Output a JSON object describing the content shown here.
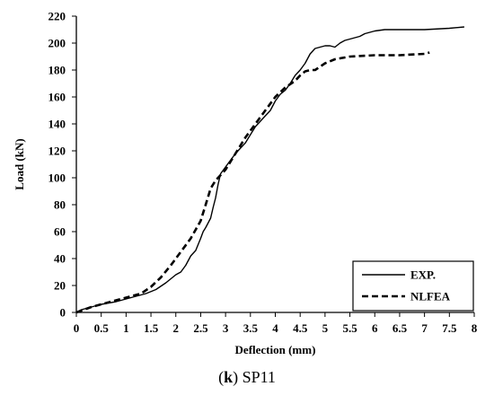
{
  "caption": {
    "prefix": "(",
    "letter": "k",
    "suffix": ") SP11"
  },
  "chart_data": {
    "type": "line",
    "title": "",
    "xlabel": "Deflection (mm)",
    "ylabel": "Load (kN)",
    "xlim": [
      0,
      8
    ],
    "ylim": [
      0,
      220
    ],
    "x_ticks": [
      "0",
      "0.5",
      "1",
      "1.5",
      "2",
      "2.5",
      "3",
      "3.5",
      "4",
      "4.5",
      "5",
      "5.5",
      "6",
      "6.5",
      "7",
      "7.5",
      "8"
    ],
    "x_tick_values": [
      0,
      0.5,
      1,
      1.5,
      2,
      2.5,
      3,
      3.5,
      4,
      4.5,
      5,
      5.5,
      6,
      6.5,
      7,
      7.5,
      8
    ],
    "y_ticks": [
      "0",
      "20",
      "40",
      "60",
      "80",
      "100",
      "120",
      "140",
      "160",
      "180",
      "200",
      "220"
    ],
    "y_tick_values": [
      0,
      20,
      40,
      60,
      80,
      100,
      120,
      140,
      160,
      180,
      200,
      220
    ],
    "grid": false,
    "legend_position": "bottom-right",
    "series": [
      {
        "name": "EXP.",
        "style": "solid",
        "color": "#000000",
        "x": [
          0,
          0.1,
          0.3,
          0.5,
          0.8,
          1.0,
          1.2,
          1.4,
          1.6,
          1.8,
          2.0,
          2.1,
          2.2,
          2.3,
          2.4,
          2.5,
          2.55,
          2.6,
          2.7,
          2.75,
          2.8,
          2.85,
          2.9,
          3.0,
          3.2,
          3.4,
          3.5,
          3.6,
          3.7,
          3.8,
          3.9,
          4.0,
          4.1,
          4.2,
          4.3,
          4.4,
          4.5,
          4.6,
          4.7,
          4.8,
          4.9,
          5.0,
          5.1,
          5.2,
          5.3,
          5.4,
          5.5,
          5.7,
          5.8,
          6.0,
          6.2,
          6.5,
          7.0,
          7.5,
          7.8
        ],
        "y": [
          0,
          2,
          4,
          6,
          8,
          10,
          12,
          14,
          17,
          22,
          28,
          30,
          35,
          42,
          46,
          55,
          60,
          63,
          70,
          78,
          85,
          95,
          103,
          108,
          118,
          126,
          132,
          138,
          142,
          146,
          150,
          157,
          162,
          165,
          170,
          176,
          180,
          185,
          192,
          196,
          197,
          198,
          198,
          197,
          200,
          202,
          203,
          205,
          207,
          209,
          210,
          210,
          210,
          211,
          212
        ]
      },
      {
        "name": "NLFEA",
        "style": "dashed",
        "color": "#000000",
        "x": [
          0,
          0.3,
          0.6,
          1.0,
          1.3,
          1.5,
          1.7,
          1.9,
          2.1,
          2.3,
          2.5,
          2.6,
          2.7,
          2.8,
          2.9,
          3.0,
          3.2,
          3.4,
          3.6,
          3.8,
          4.0,
          4.2,
          4.4,
          4.5,
          4.6,
          4.7,
          4.8,
          5.0,
          5.2,
          5.5,
          6.0,
          6.5,
          7.0,
          7.1
        ],
        "y": [
          0,
          4,
          7,
          11,
          14,
          19,
          26,
          35,
          45,
          55,
          68,
          80,
          92,
          98,
          102,
          106,
          118,
          130,
          140,
          150,
          160,
          167,
          172,
          176,
          179,
          180,
          180,
          185,
          188,
          190,
          191,
          191,
          192,
          193
        ]
      }
    ]
  }
}
